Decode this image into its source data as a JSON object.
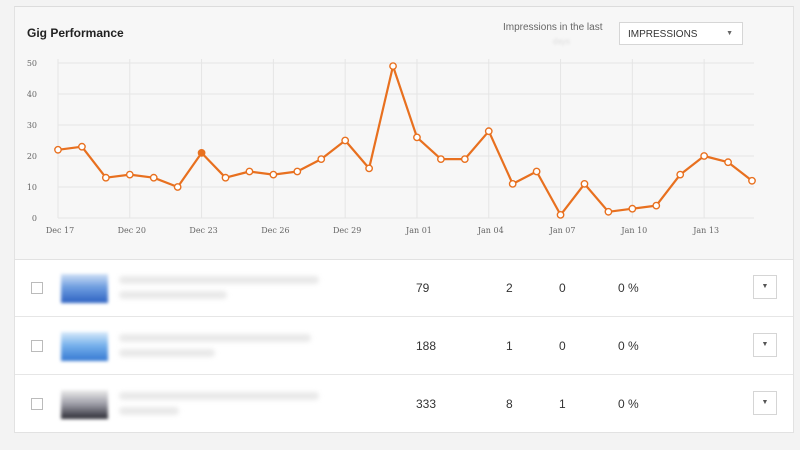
{
  "header": {
    "title": "Gig Performance",
    "impressions_label": "Impressions in the last",
    "impressions_faded": "days",
    "metric_select": "IMPRESSIONS"
  },
  "colors": {
    "line": "#e8701f",
    "grid": "#e5e5e5"
  },
  "chart_data": {
    "type": "line",
    "title": "Gig Performance",
    "series": [
      {
        "name": "Impressions",
        "values": [
          22,
          23,
          13,
          14,
          13,
          10,
          21,
          13,
          15,
          14,
          15,
          19,
          25,
          16,
          49,
          26,
          19,
          19,
          28,
          11,
          15,
          1,
          11,
          2,
          3,
          4,
          14,
          20,
          18,
          12
        ]
      }
    ],
    "x_tick_labels": [
      "Dec 17",
      "Dec 20",
      "Dec 23",
      "Dec 26",
      "Dec 29",
      "Jan 01",
      "Jan 04",
      "Jan 07",
      "Jan 10",
      "Jan 13"
    ],
    "x_tick_every": 3,
    "y_ticks": [
      0,
      10,
      20,
      30,
      40,
      50
    ],
    "ylim": [
      0,
      50
    ],
    "highlight_index": 6,
    "grid": true
  },
  "gigs": [
    {
      "col1": "79",
      "col2": "2",
      "col3": "0",
      "col4": "0 %",
      "thumb": "blue"
    },
    {
      "col1": "188",
      "col2": "1",
      "col3": "0",
      "col4": "0 %",
      "thumb": "blue"
    },
    {
      "col1": "333",
      "col2": "8",
      "col3": "1",
      "col4": "0 %",
      "thumb": "gray"
    }
  ],
  "icons": {
    "select_caret": "▼",
    "row_dropdown": "▼"
  }
}
